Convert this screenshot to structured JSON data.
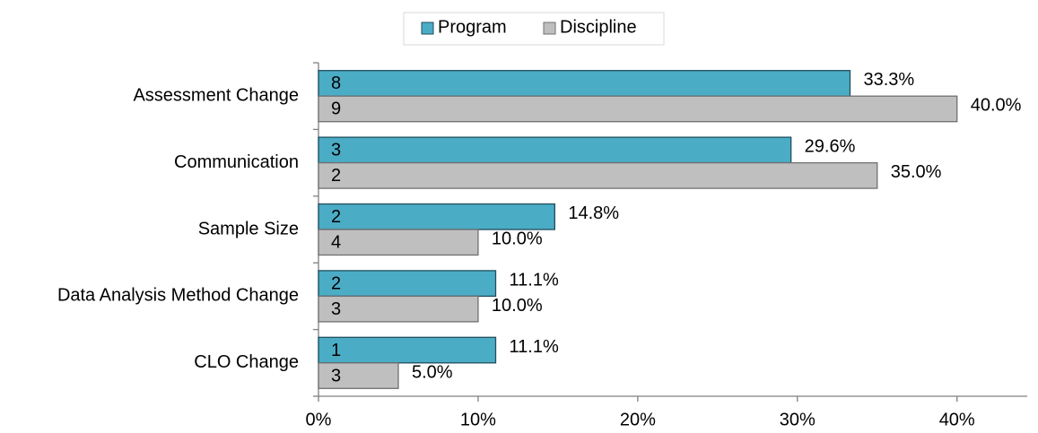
{
  "chart_data": {
    "type": "hbar",
    "categories": [
      "Assessment Change",
      "Communication",
      "Sample Size",
      "Data Analysis Method Change",
      "CLO Change"
    ],
    "series": [
      {
        "name": "Program",
        "color": "#4bacc6",
        "edge": "#1f4e5f",
        "values": [
          33.3,
          29.6,
          14.8,
          11.1,
          11.1
        ],
        "value_labels": [
          "33.3%",
          "29.6%",
          "14.8%",
          "11.1%",
          "11.1%"
        ],
        "counts": [
          8,
          3,
          2,
          2,
          1
        ]
      },
      {
        "name": "Discipline",
        "color": "#bfbfbf",
        "edge": "#707070",
        "values": [
          40.0,
          35.0,
          10.0,
          10.0,
          5.0
        ],
        "value_labels": [
          "40.0%",
          "35.0%",
          "10.0%",
          "10.0%",
          "5.0%"
        ],
        "counts": [
          9,
          2,
          4,
          3,
          3
        ]
      }
    ],
    "xlim": [
      0,
      44.4
    ],
    "xticks": [
      {
        "value": 0,
        "label": "0%"
      },
      {
        "value": 10,
        "label": "10%"
      },
      {
        "value": 20,
        "label": "20%"
      },
      {
        "value": 30,
        "label": "30%"
      },
      {
        "value": 40,
        "label": "40%"
      }
    ],
    "legend": "top"
  }
}
